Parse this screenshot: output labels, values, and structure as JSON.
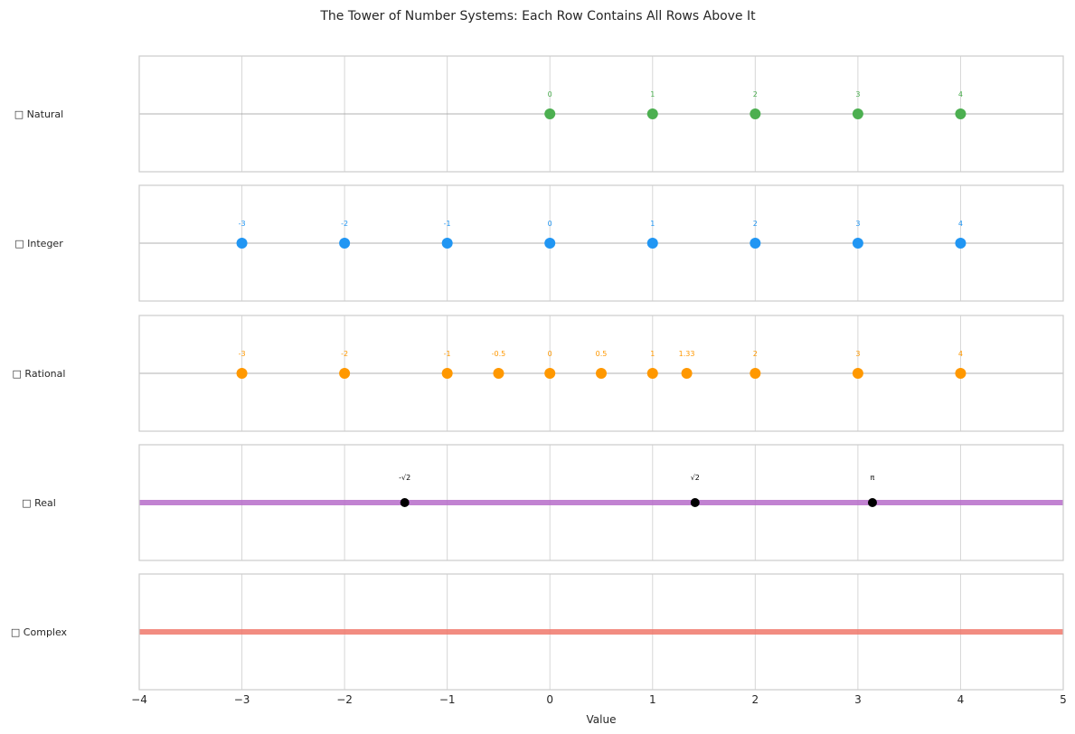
{
  "chart_data": {
    "type": "scatter",
    "title": "The Tower of Number Systems: Each Row Contains All Rows Above It",
    "xlabel": "Value",
    "xlim": [
      -4,
      5
    ],
    "xticks": [
      -4,
      -3,
      -2,
      -1,
      0,
      1,
      2,
      3,
      4,
      5
    ],
    "xtick_labels": [
      "−4",
      "−3",
      "−2",
      "−1",
      "0",
      "1",
      "2",
      "3",
      "4",
      "5"
    ],
    "grid": true,
    "rows": [
      {
        "label": "□  Natural",
        "color": "#4caf50",
        "line": "thin",
        "points": [
          {
            "x": 0,
            "label": "0"
          },
          {
            "x": 1,
            "label": "1"
          },
          {
            "x": 2,
            "label": "2"
          },
          {
            "x": 3,
            "label": "3"
          },
          {
            "x": 4,
            "label": "4"
          }
        ]
      },
      {
        "label": "□  Integer",
        "color": "#2196f3",
        "line": "thin",
        "points": [
          {
            "x": -3,
            "label": "-3"
          },
          {
            "x": -2,
            "label": "-2"
          },
          {
            "x": -1,
            "label": "-1"
          },
          {
            "x": 0,
            "label": "0"
          },
          {
            "x": 1,
            "label": "1"
          },
          {
            "x": 2,
            "label": "2"
          },
          {
            "x": 3,
            "label": "3"
          },
          {
            "x": 4,
            "label": "4"
          }
        ]
      },
      {
        "label": "□  Rational",
        "color": "#ff9800",
        "line": "thin",
        "points": [
          {
            "x": -3,
            "label": "-3"
          },
          {
            "x": -2,
            "label": "-2"
          },
          {
            "x": -1,
            "label": "-1"
          },
          {
            "x": -0.5,
            "label": "-0.5"
          },
          {
            "x": 0,
            "label": "0"
          },
          {
            "x": 0.5,
            "label": "0.5"
          },
          {
            "x": 1,
            "label": "1"
          },
          {
            "x": 1.333,
            "label": "1.33"
          },
          {
            "x": 2,
            "label": "2"
          },
          {
            "x": 3,
            "label": "3"
          },
          {
            "x": 4,
            "label": "4"
          }
        ]
      },
      {
        "label": "□  Real",
        "color": "#000000",
        "line": "thick",
        "line_color": "#b66cc9",
        "points": [
          {
            "x": -1.414,
            "label": "-√2"
          },
          {
            "x": 1.414,
            "label": "√2"
          },
          {
            "x": 3.1416,
            "label": "π"
          }
        ]
      },
      {
        "label": "□  Complex",
        "color": "#000000",
        "line": "thick",
        "line_color": "#f0786b",
        "points": []
      }
    ]
  }
}
